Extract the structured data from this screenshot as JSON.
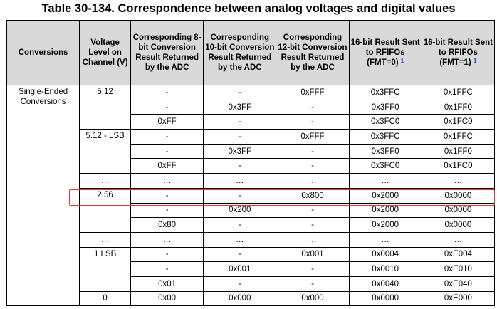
{
  "title": "Table 30-134.   Correspondence between analog voltages and digital values",
  "headers": {
    "conversions": "Conversions",
    "voltage": "Voltage Level on Channel (V)",
    "bit8": "Corresponding 8-bit Conversion Result Returned by the ADC",
    "bit10": "Corresponding 10-bit Conversion Result Returned by the ADC",
    "bit12": "Corresponding 12-bit Conversion Result Returned by the ADC",
    "fmt0": "16-bit Result Sent to RFIFOs (FMT=0)",
    "fmt0_note": "1",
    "fmt1": "16-bit Result Sent to RFIFOs (FMT=1)",
    "fmt1_note": "1"
  },
  "conversion_type": "Single-Ended Conversions",
  "voltages": [
    "5.12",
    "5.12 - LSB",
    "…",
    "2.56",
    "…",
    "1 LSB",
    "0"
  ],
  "rows": [
    {
      "b8": "-",
      "b10": "-",
      "b12": "0xFFF",
      "f0": "0x3FFC",
      "f1": "0x1FFC"
    },
    {
      "b8": "-",
      "b10": "0x3FF",
      "b12": "-",
      "f0": "0x3FF0",
      "f1": "0x1FF0"
    },
    {
      "b8": "0xFF",
      "b10": "-",
      "b12": "-",
      "f0": "0x3FC0",
      "f1": "0x1FC0"
    },
    {
      "b8": "-",
      "b10": "-",
      "b12": "0xFFF",
      "f0": "0x3FFC",
      "f1": "0x1FFC"
    },
    {
      "b8": "-",
      "b10": "0x3FF",
      "b12": "-",
      "f0": "0x3FF0",
      "f1": "0x1FF0"
    },
    {
      "b8": "0xFF",
      "b10": "-",
      "b12": "-",
      "f0": "0x3FC0",
      "f1": "0x1FC0"
    },
    {
      "b8": "…",
      "b10": "…",
      "b12": "…",
      "f0": "…",
      "f1": "…"
    },
    {
      "b8": "-",
      "b10": "-",
      "b12": "0x800",
      "f0": "0x2000",
      "f1": "0x0000"
    },
    {
      "b8": "-",
      "b10": "0x200",
      "b12": "-",
      "f0": "0x2000",
      "f1": "0x0000"
    },
    {
      "b8": "0x80",
      "b10": "-",
      "b12": "-",
      "f0": "0x2000",
      "f1": "0x0000"
    },
    {
      "b8": "…",
      "b10": "…",
      "b12": "…",
      "f0": "…",
      "f1": "…"
    },
    {
      "b8": "-",
      "b10": "-",
      "b12": "0x001",
      "f0": "0x0004",
      "f1": "0xE004"
    },
    {
      "b8": "-",
      "b10": "0x001",
      "b12": "-",
      "f0": "0x0010",
      "f1": "0xE010"
    },
    {
      "b8": "0x01",
      "b10": "-",
      "b12": "-",
      "f0": "0x0040",
      "f1": "0xE040"
    },
    {
      "b8": "0x00",
      "b10": "0x000",
      "b12": "0x000",
      "f0": "0x0000",
      "f1": "0xE000"
    }
  ],
  "highlight_color": "#e53935",
  "header_bg": "#d9d9d9"
}
